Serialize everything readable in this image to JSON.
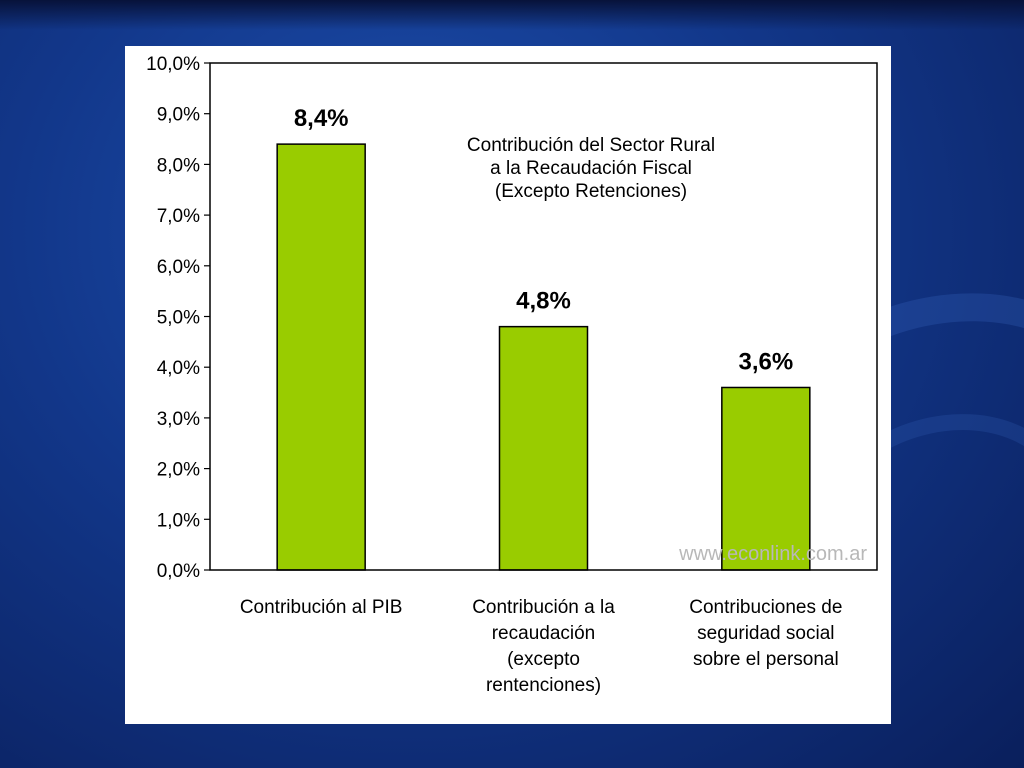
{
  "chart_data": {
    "type": "bar",
    "title_lines": [
      "Contribución del Sector Rural",
      "a la Recaudación Fiscal",
      "(Excepto Retenciones)"
    ],
    "categories": [
      [
        "Contribución al PIB"
      ],
      [
        "Contribución a la",
        "recaudación",
        "(excepto",
        "rentenciones)"
      ],
      [
        "Contribuciones de",
        "seguridad social",
        "sobre el personal"
      ]
    ],
    "values": [
      8.4,
      4.8,
      3.6
    ],
    "value_labels": [
      "8,4%",
      "4,8%",
      "3,6%"
    ],
    "yticks": [
      "0,0%",
      "1,0%",
      "2,0%",
      "3,0%",
      "4,0%",
      "5,0%",
      "6,0%",
      "7,0%",
      "8,0%",
      "9,0%",
      "10,0%"
    ],
    "ylim": [
      0,
      10
    ],
    "grid": false,
    "legend": "none",
    "bar_color": "#99cc00",
    "watermark": "www.econlink.com.ar"
  }
}
